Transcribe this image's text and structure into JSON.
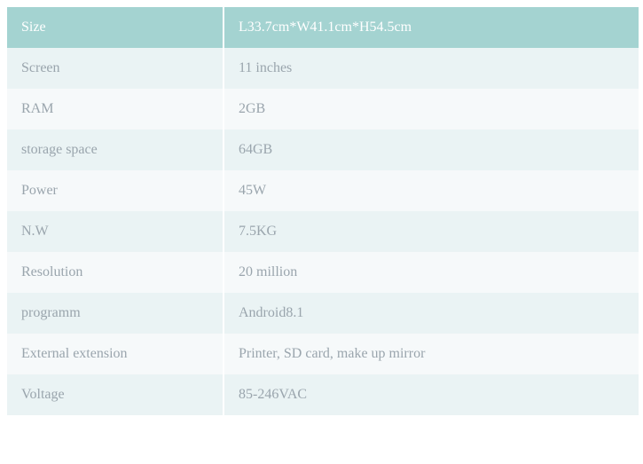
{
  "table": {
    "header": {
      "left": "Size",
      "right": "L33.7cm*W41.1cm*H54.5cm"
    },
    "rows": [
      {
        "label": "Screen",
        "value": "11 inches"
      },
      {
        "label": "RAM",
        "value": "2GB"
      },
      {
        "label": "storage space",
        "value": "64GB"
      },
      {
        "label": "Power",
        "value": "45W"
      },
      {
        "label": "N.W",
        "value": "7.5KG"
      },
      {
        "label": "Resolution",
        "value": "20 million"
      },
      {
        "label": "programm",
        "value": "Android8.1"
      },
      {
        "label": "External extension",
        "value": "Printer, SD card, make up mirror"
      },
      {
        "label": "Voltage",
        "value": "85-246VAC"
      }
    ],
    "colors": {
      "header_bg": "#a4d3d1",
      "header_text": "#ffffff",
      "row_odd_bg": "#eaf3f4",
      "row_even_bg": "#f6f9fa",
      "body_text": "#9aa5ad",
      "cell_divider": "#ffffff"
    },
    "font_family": "Georgia, Times New Roman, serif",
    "font_size_pt": 12
  }
}
